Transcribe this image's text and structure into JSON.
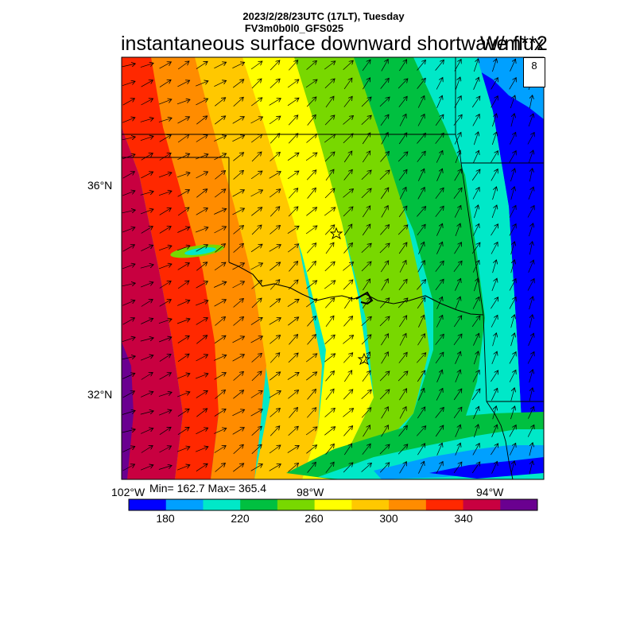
{
  "header": {
    "date_line": "2023/2/28/23UTC (17LT), Tuesday",
    "model_line": "FV3m0b0l0_GFS025",
    "field_title": "instantaneous surface downward shortwave flux",
    "units": "W/m**2"
  },
  "map": {
    "lat_labels": [
      "36°N",
      "32°N"
    ],
    "lon_labels": [
      "102°W",
      "98°W",
      "94°W"
    ],
    "stats": "Min= 162.7 Max= 365.4",
    "reference_vector": "8",
    "markers": [
      "star-marker",
      "star-marker"
    ]
  },
  "colorbar": {
    "colors": [
      "#0000ff",
      "#00a0ff",
      "#00e8c8",
      "#00c040",
      "#78d800",
      "#ffff00",
      "#ffc800",
      "#ff8c00",
      "#ff2800",
      "#c80040",
      "#6a0090"
    ],
    "labels": [
      "180",
      "220",
      "260",
      "300",
      "340"
    ]
  }
}
